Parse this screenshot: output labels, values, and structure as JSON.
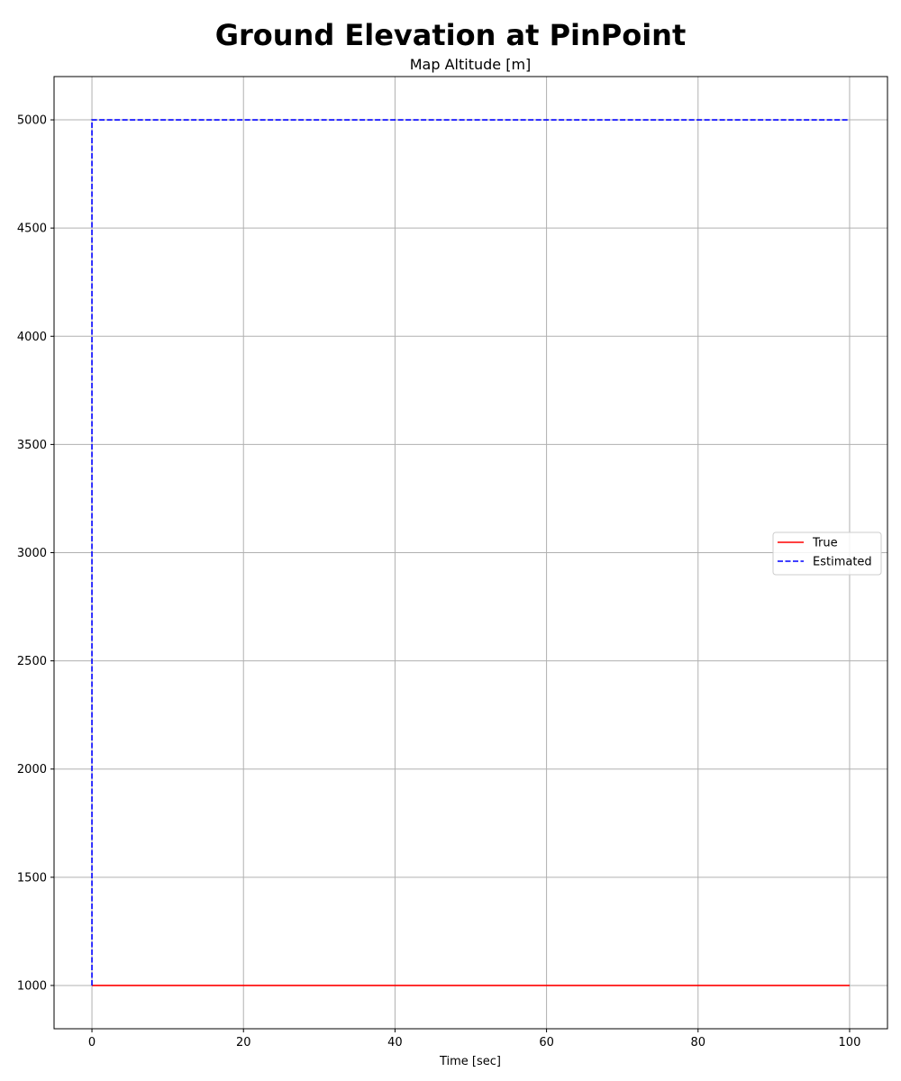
{
  "chart_data": {
    "type": "line",
    "suptitle": "Ground Elevation at PinPoint",
    "title": "Map Altitude [m]",
    "xlabel": "Time [sec]",
    "ylabel": "",
    "xlim": [
      -5,
      105
    ],
    "ylim": [
      800,
      5200
    ],
    "xticks": [
      0,
      20,
      40,
      60,
      80,
      100
    ],
    "yticks": [
      1000,
      1500,
      2000,
      2500,
      3000,
      3500,
      4000,
      4500,
      5000
    ],
    "grid": true,
    "legend_position": "center-right",
    "series": [
      {
        "name": "True",
        "color": "#ff0000",
        "linestyle": "solid",
        "x": [
          0,
          100
        ],
        "y": [
          1000,
          1000
        ]
      },
      {
        "name": "Estimated",
        "color": "#0000ff",
        "linestyle": "dashed",
        "x": [
          0,
          0,
          100
        ],
        "y": [
          1000,
          5000,
          5000
        ]
      }
    ]
  }
}
